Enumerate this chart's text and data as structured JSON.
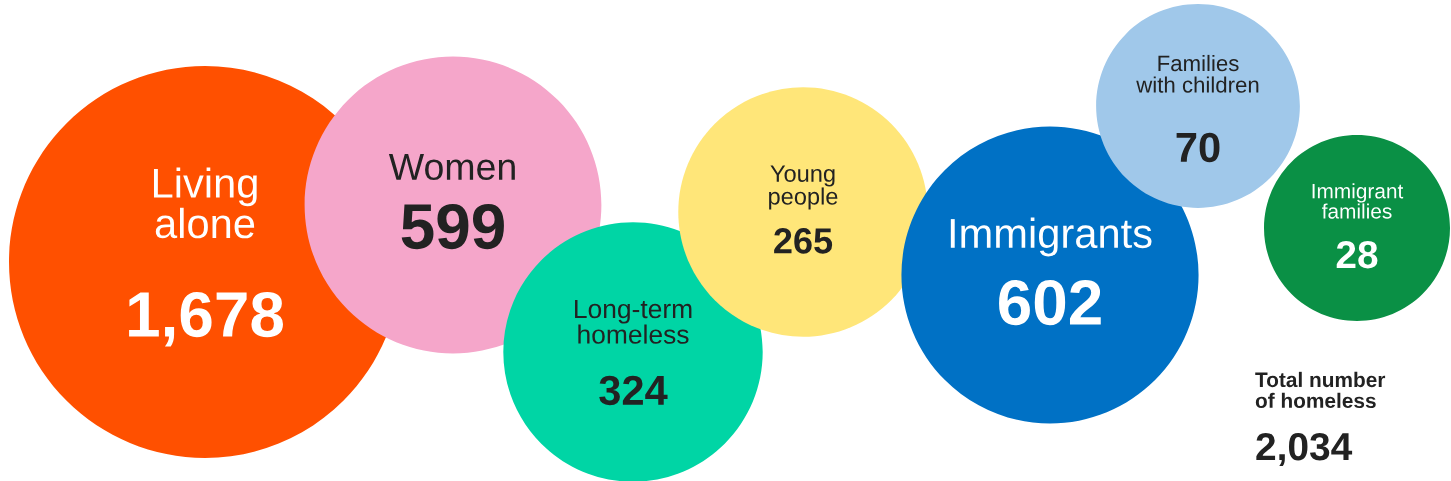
{
  "chart_data": {
    "type": "other",
    "categories": [
      "Living alone",
      "Women",
      "Long-term homeless",
      "Young people",
      "Immigrants",
      "Families with children",
      "Immigrant families"
    ],
    "values": [
      1678,
      599,
      324,
      265,
      602,
      70,
      28
    ],
    "value_labels": [
      "1,678",
      "599",
      "324",
      "265",
      "602",
      "70",
      "28"
    ],
    "colors": [
      "#ff5000",
      "#f5a6ca",
      "#00d5a5",
      "#ffe679",
      "#0071c5",
      "#a0c8ea",
      "#0a9045"
    ],
    "annotations": [
      "Total number\nof homeless\n2,034"
    ]
  }
}
